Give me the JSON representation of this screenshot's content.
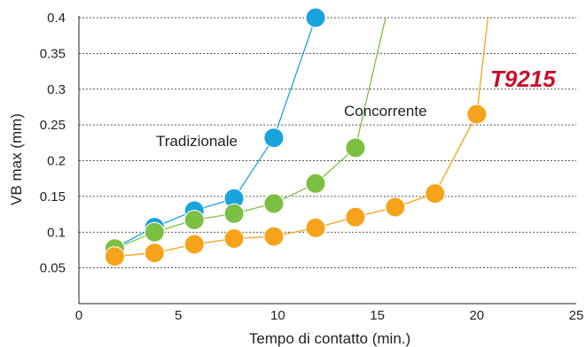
{
  "chart_data": {
    "type": "line",
    "xlabel": "Tempo di contatto (min.)",
    "ylabel": "VB max (mm)",
    "xlim": [
      0,
      25
    ],
    "ylim": [
      0,
      0.4
    ],
    "x_ticks": [
      "0",
      "5",
      "10",
      "15",
      "20",
      "25"
    ],
    "y_ticks": [
      "0.05",
      "0.1",
      "0.15",
      "0.2",
      "0.25",
      "0.3",
      "0.35",
      "0.4"
    ],
    "grid": "horizontal dotted",
    "brand_label": "T9215",
    "series": [
      {
        "name": "Tradizionale",
        "color": "#1aa3dc",
        "x": [
          1.8,
          3.8,
          5.8,
          7.8,
          9.8,
          11.9
        ],
        "y": [
          0.078,
          0.107,
          0.13,
          0.147,
          0.232,
          0.4
        ],
        "tail": {
          "x": [
            12.1
          ],
          "y": [
            0.43
          ]
        }
      },
      {
        "name": "Concorrente",
        "color": "#7bbf43",
        "x": [
          1.8,
          3.8,
          5.8,
          7.8,
          9.8,
          11.9,
          13.9
        ],
        "y": [
          0.077,
          0.1,
          0.117,
          0.126,
          0.14,
          0.168,
          0.218
        ],
        "tail": {
          "x": [
            15.5
          ],
          "y": [
            0.41
          ]
        }
      },
      {
        "name": "",
        "color": "#f7a21b",
        "x": [
          1.8,
          3.8,
          5.8,
          7.8,
          9.8,
          11.9,
          13.9,
          15.9,
          17.9,
          20.0
        ],
        "y": [
          0.066,
          0.071,
          0.083,
          0.091,
          0.094,
          0.106,
          0.121,
          0.135,
          0.154,
          0.265
        ],
        "tail": {
          "x": [
            20.6
          ],
          "y": [
            0.41
          ]
        }
      }
    ]
  }
}
